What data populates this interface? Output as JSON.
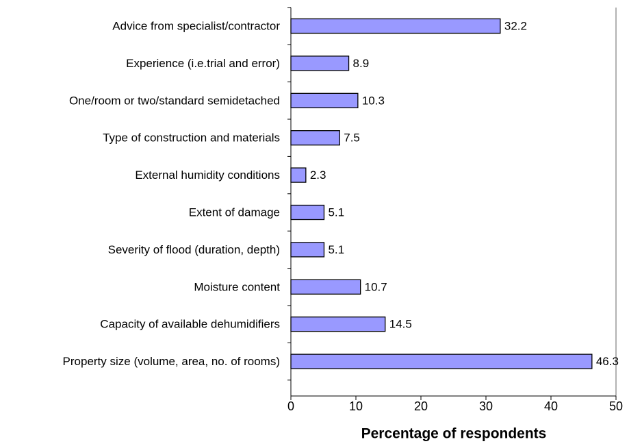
{
  "chart_data": {
    "type": "bar",
    "orientation": "horizontal",
    "x_label": "Percentage of respondents",
    "categories": [
      "Advice from specialist/contractor",
      "Experience (i.e.trial and error)",
      "One/room or two/standard semidetached",
      "Type of construction and materials",
      "External humidity conditions",
      "Extent of damage",
      "Severity of flood (duration, depth)",
      "Moisture content",
      "Capacity of available dehumidifiers",
      "Property size (volume, area, no. of rooms)"
    ],
    "values": [
      32.2,
      8.9,
      10.3,
      7.5,
      2.3,
      5.1,
      5.1,
      10.7,
      14.5,
      46.3
    ],
    "color": "#9999ff",
    "xlim": [
      0,
      50
    ],
    "xticks": [
      0,
      10,
      20,
      30,
      40,
      50
    ],
    "grid": false
  }
}
